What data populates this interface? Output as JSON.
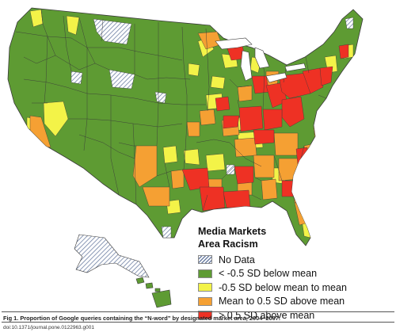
{
  "legend": {
    "title_line1": "Media Markets",
    "title_line2": "Area Racism",
    "items": [
      {
        "key": "no-data",
        "label": "No Data",
        "pattern": "hatched"
      },
      {
        "key": "below",
        "label": "< -0.5 SD below mean",
        "color": "#5e9b33"
      },
      {
        "key": "lowmid",
        "label": "-0.5 SD below mean to mean",
        "color": "#f3f348"
      },
      {
        "key": "highmid",
        "label": "Mean to 0.5 SD above mean",
        "color": "#f5a033"
      },
      {
        "key": "above",
        "label": "> 0.5 SD above mean",
        "color": "#ee3124"
      }
    ]
  },
  "colors": {
    "no_data_hatch": "#6d7fa3",
    "boundary": "#3a3a3a"
  },
  "caption": "Fig 1. Proportion of Google queries containing the “N-word” by designated market area, 2004–2007.",
  "doi": "doi:10.1371/journal.pone.0122963.g001"
}
